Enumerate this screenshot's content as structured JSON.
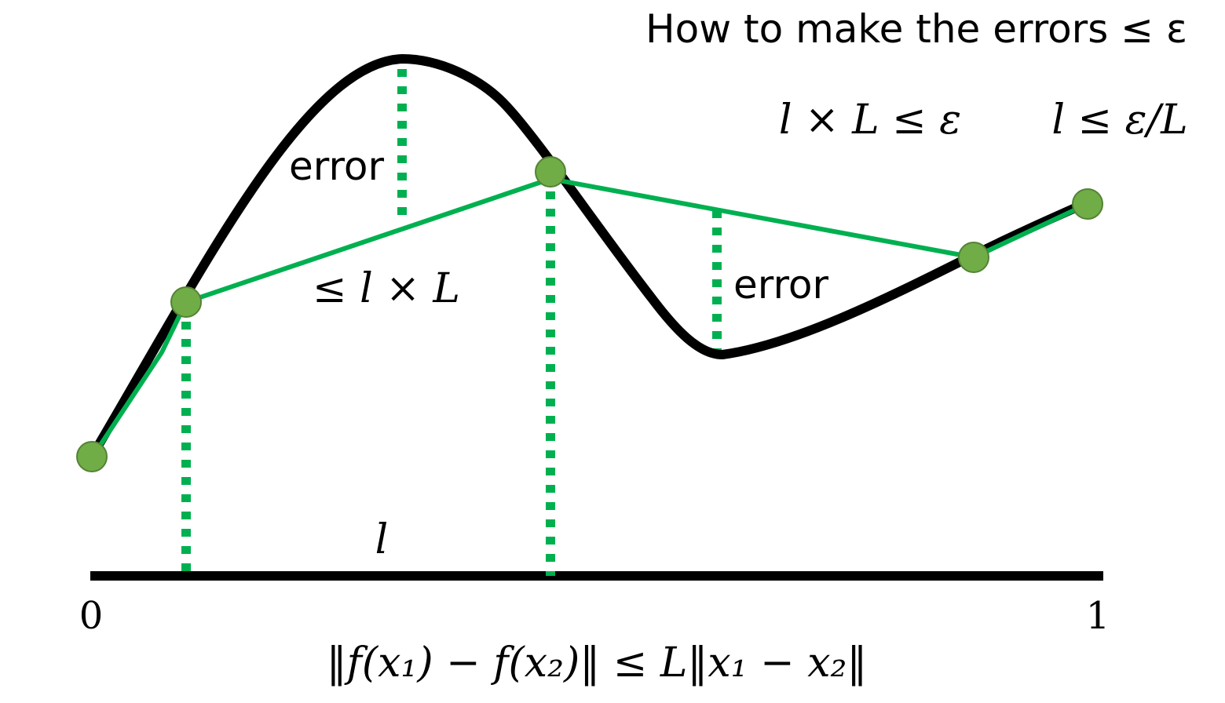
{
  "title": "How to make the errors ≤ ε",
  "conditions": {
    "product": "l × L ≤ ε",
    "ratio": "l ≤ ε/L"
  },
  "labels": {
    "error_left": "error",
    "error_right": "error",
    "bound": "≤ l × L",
    "segment_length": "l",
    "axis_start": "0",
    "axis_end": "1"
  },
  "lipschitz_inequality": "‖f(x₁) − f(x₂)‖ ≤ L‖x₁ − x₂‖",
  "colors": {
    "curve": "#000000",
    "approximation": "#00b050",
    "points_fill": "#70ad47",
    "points_stroke": "#548235",
    "guide_lines": "#00b050"
  }
}
